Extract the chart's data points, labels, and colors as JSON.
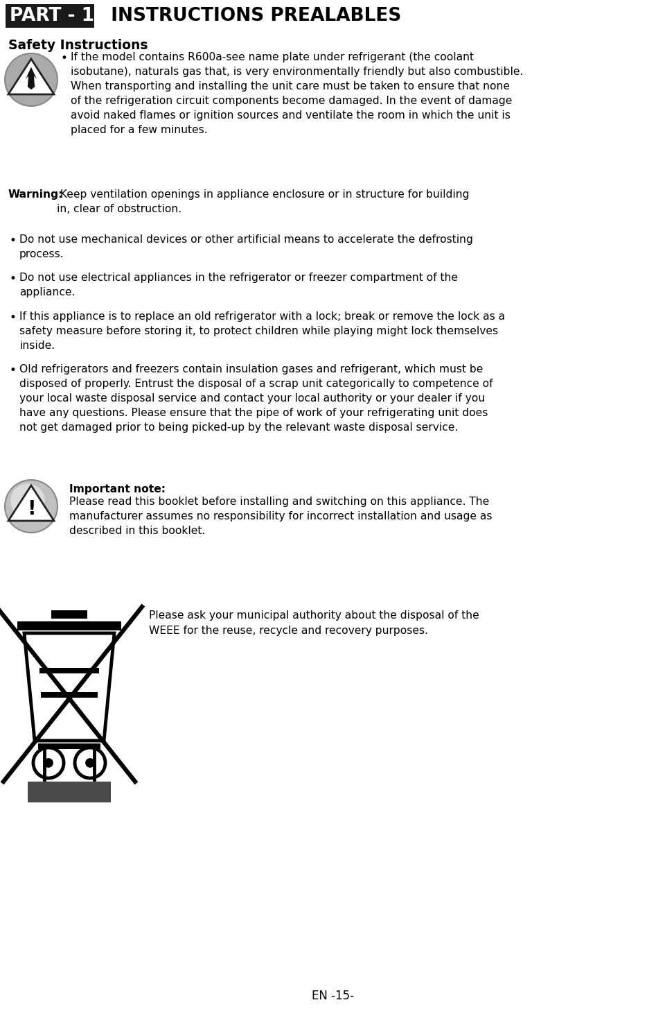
{
  "bg_color": "#ffffff",
  "header_bg": "#1a1a1a",
  "header_text": "PART - 1.",
  "header_subtitle": "  INSTRUCTIONS PREALABLES",
  "section_title": "Safety Instructions",
  "bullet1_text": "If the model contains R600a-see name plate under refrigerant (the coolant\nisobutane), naturals gas that, is very environmentally friendly but also combustible.\nWhen transporting and installing the unit care must be taken to ensure that none\nof the refrigeration circuit components become damaged. In the event of damage\navoid naked flames or ignition sources and ventilate the room in which the unit is\nplaced for a few minutes.",
  "warning_bold": "Warning:",
  "warning_normal": " Keep ventilation openings in appliance enclosure or in structure for building\nin, clear of obstruction.",
  "bullet2_text": "Do not use mechanical devices or other artificial means to accelerate the defrosting\nprocess.",
  "bullet3_text": "Do not use electrical appliances in the refrigerator or freezer compartment of the\nappliance.",
  "bullet4_text": "If this appliance is to replace an old refrigerator with a lock; break or remove the lock as a\nsafety measure before storing it, to protect children while playing might lock themselves\ninside.",
  "bullet5_text": "Old refrigerators and freezers contain insulation gases and refrigerant, which must be\ndisposed of properly. Entrust the disposal of a scrap unit categorically to competence of\nyour local waste disposal service and contact your local authority or your dealer if you\nhave any questions. Please ensure that the pipe of work of your refrigerating unit does\nnot get damaged prior to being picked-up by the relevant waste disposal service.",
  "important_bold": "Important note:",
  "important_text": "Please read this booklet before installing and switching on this appliance. The\nmanufacturer assumes no responsibility for incorrect installation and usage as\ndescribed in this booklet.",
  "weee_text": "Please ask your municipal authority about the disposal of the\nWEEE for the reuse, recycle and recovery purposes.",
  "footer_text": "EN -15-",
  "fs_body": 11.2,
  "fs_header": 19,
  "fs_section": 13.5
}
